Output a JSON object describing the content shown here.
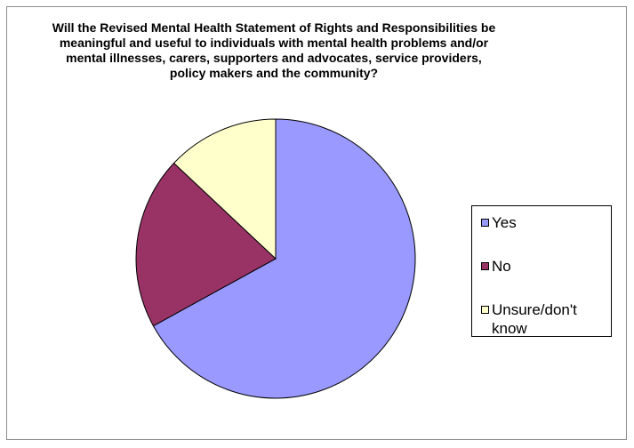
{
  "chart_data": {
    "type": "pie",
    "title": "Will the Revised Mental Health Statement of Rights and Responsibilities be meaningful and useful to individuals with mental health problems and/or mental illnesses, carers, supporters and advocates, service providers, policy makers and the community?",
    "categories": [
      "Yes",
      "No",
      "Unsure/don't know"
    ],
    "values": [
      67,
      20,
      13
    ],
    "colors": [
      "#9999FF",
      "#993366",
      "#FFFFCC"
    ],
    "legend_position": "right",
    "start_angle": "top, clockwise"
  }
}
